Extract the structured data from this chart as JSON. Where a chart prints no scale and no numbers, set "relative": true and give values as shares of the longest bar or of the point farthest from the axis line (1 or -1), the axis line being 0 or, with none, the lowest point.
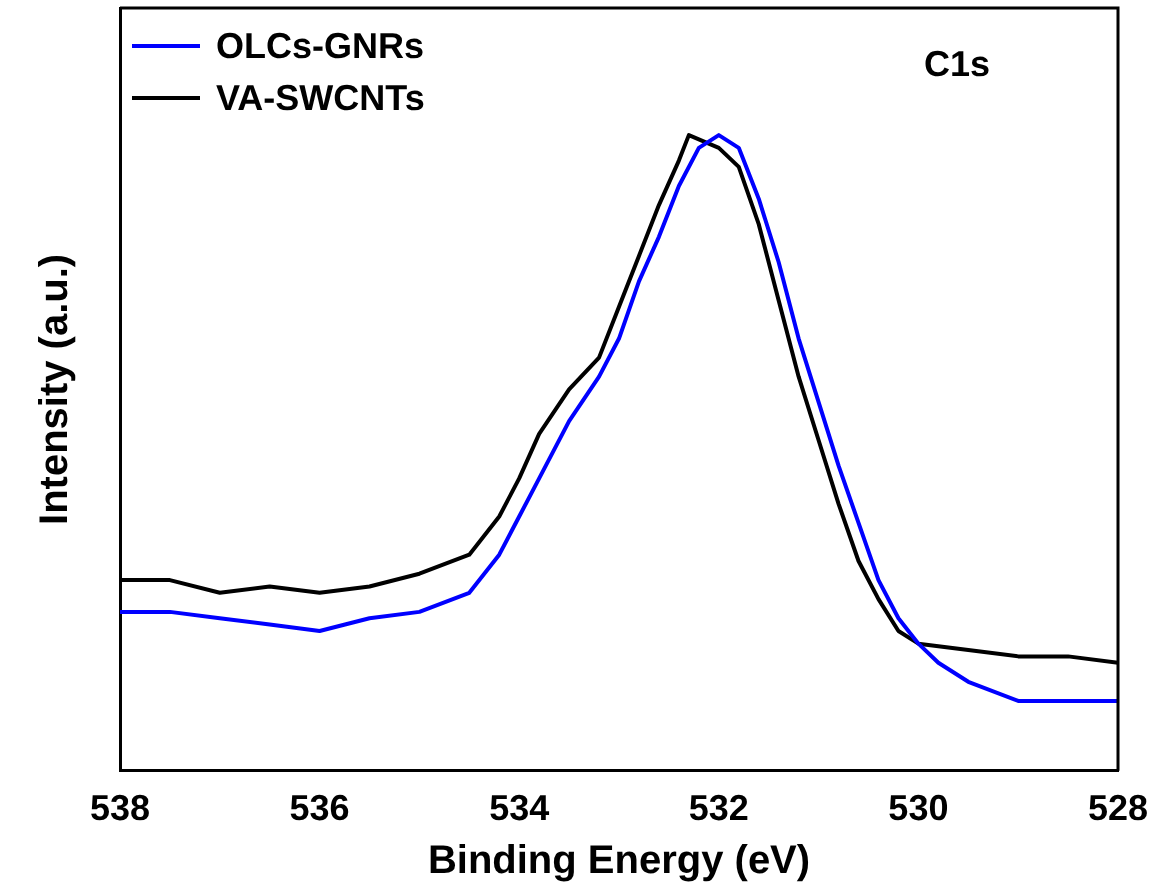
{
  "chart_data": {
    "type": "line",
    "xlabel": "Binding Energy (eV)",
    "ylabel": "Intensity (a.u.)",
    "relative": true,
    "xlim": [
      538,
      528
    ],
    "xticks": [
      538,
      536,
      534,
      532,
      530,
      528
    ],
    "legend": "top left",
    "grid": false,
    "marker": "none",
    "annotations": [
      "C1s"
    ],
    "series": [
      {
        "name": "OLCs-GNRs",
        "color": "#0000ff",
        "x": [
          538,
          537.5,
          537,
          536.5,
          536,
          535.5,
          535,
          534.5,
          534.2,
          534,
          533.8,
          533.5,
          533.2,
          533,
          532.8,
          532.6,
          532.4,
          532.2,
          532,
          531.8,
          531.6,
          531.4,
          531.2,
          531,
          530.8,
          530.6,
          530.4,
          530.2,
          530,
          529.8,
          529.5,
          529,
          528.5,
          528
        ],
        "values": [
          0.25,
          0.25,
          0.24,
          0.23,
          0.22,
          0.24,
          0.25,
          0.28,
          0.34,
          0.4,
          0.46,
          0.55,
          0.62,
          0.68,
          0.77,
          0.84,
          0.92,
          0.98,
          1,
          0.98,
          0.9,
          0.8,
          0.68,
          0.58,
          0.48,
          0.39,
          0.3,
          0.24,
          0.2,
          0.17,
          0.14,
          0.11,
          0.11,
          0.11
        ]
      },
      {
        "name": "VA-SWCNTs",
        "color": "#000000",
        "x": [
          538,
          537.5,
          537,
          536.5,
          536,
          535.5,
          535,
          534.5,
          534.2,
          534,
          533.8,
          533.5,
          533.2,
          533,
          532.8,
          532.6,
          532.4,
          532.3,
          532,
          531.8,
          531.6,
          531.4,
          531.2,
          531,
          530.8,
          530.6,
          530.4,
          530.2,
          530,
          529.5,
          529,
          528.5,
          528
        ],
        "values": [
          0.3,
          0.3,
          0.28,
          0.29,
          0.28,
          0.29,
          0.31,
          0.34,
          0.4,
          0.46,
          0.53,
          0.6,
          0.65,
          0.73,
          0.81,
          0.89,
          0.96,
          1,
          0.98,
          0.95,
          0.86,
          0.74,
          0.62,
          0.52,
          0.42,
          0.33,
          0.27,
          0.22,
          0.2,
          0.19,
          0.18,
          0.18,
          0.17
        ]
      }
    ]
  }
}
